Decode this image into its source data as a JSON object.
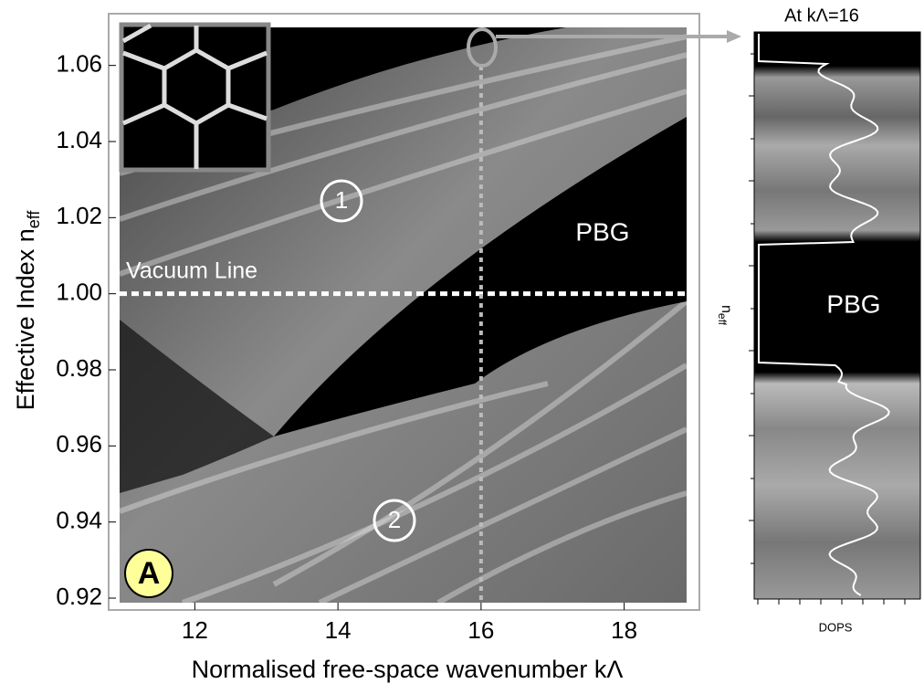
{
  "chart_data": {
    "type": "heatmap",
    "xlabel": "Normalised free-space wavenumber kΛ",
    "ylabel": {
      "text": "Effective Index n",
      "subscript": "eff"
    },
    "xlim": [
      11,
      19
    ],
    "ylim": [
      0.92,
      1.07
    ],
    "xticks": [
      12,
      14,
      16,
      18
    ],
    "yticks": [
      {
        "value": 0.92,
        "label": "0.92"
      },
      {
        "value": 0.94,
        "label": "0.94"
      },
      {
        "value": 0.96,
        "label": "0.96"
      },
      {
        "value": 0.98,
        "label": "0.98"
      },
      {
        "value": 1.0,
        "label": "1.00"
      },
      {
        "value": 1.02,
        "label": "1.02"
      },
      {
        "value": 1.04,
        "label": "1.04"
      },
      {
        "value": 1.06,
        "label": "1.06"
      }
    ],
    "vacuum_line": {
      "label": "Vacuum Line",
      "value": 1
    },
    "cut_line": 16,
    "annotations": [
      "1",
      "2",
      "PBG"
    ],
    "panel_label": "A",
    "side_panel": {
      "title": "At kΛ=16",
      "ylabel": {
        "text": "n",
        "subscript": "eff"
      },
      "xlabel": "DOPS",
      "annotation": "PBG"
    }
  }
}
